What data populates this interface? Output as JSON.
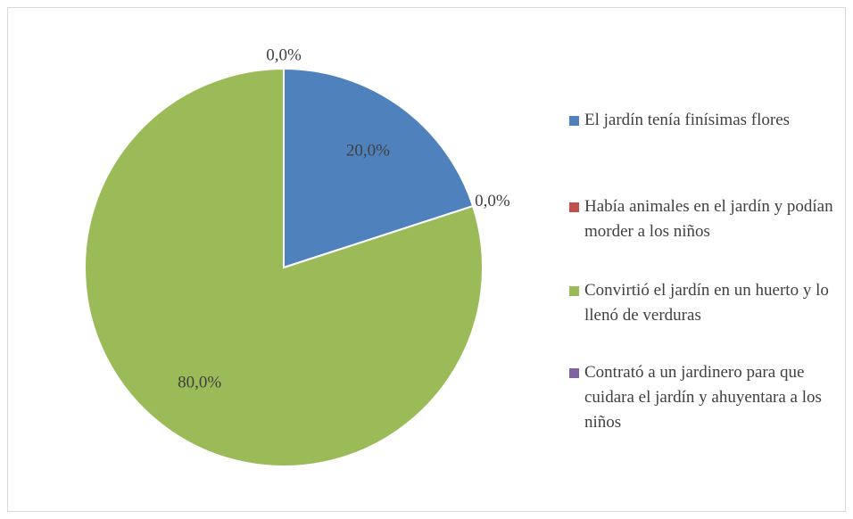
{
  "chart_data": {
    "type": "pie",
    "categories": [
      "El jardín tenía finísimas flores",
      "Había animales en el jardín y podían morder a los niños",
      "Convirtió el jardín en un huerto y lo llenó de verduras",
      "Contrató a un jardinero para que cuidara el jardín y ahuyentara a los niños"
    ],
    "values": [
      20,
      0,
      80,
      0
    ],
    "value_labels": [
      "20,0%",
      "0,0%",
      "80,0%",
      "0,0%"
    ],
    "colors": [
      "#4f81bd",
      "#c0504d",
      "#9bbb59",
      "#8064a2"
    ],
    "legend": "right"
  }
}
